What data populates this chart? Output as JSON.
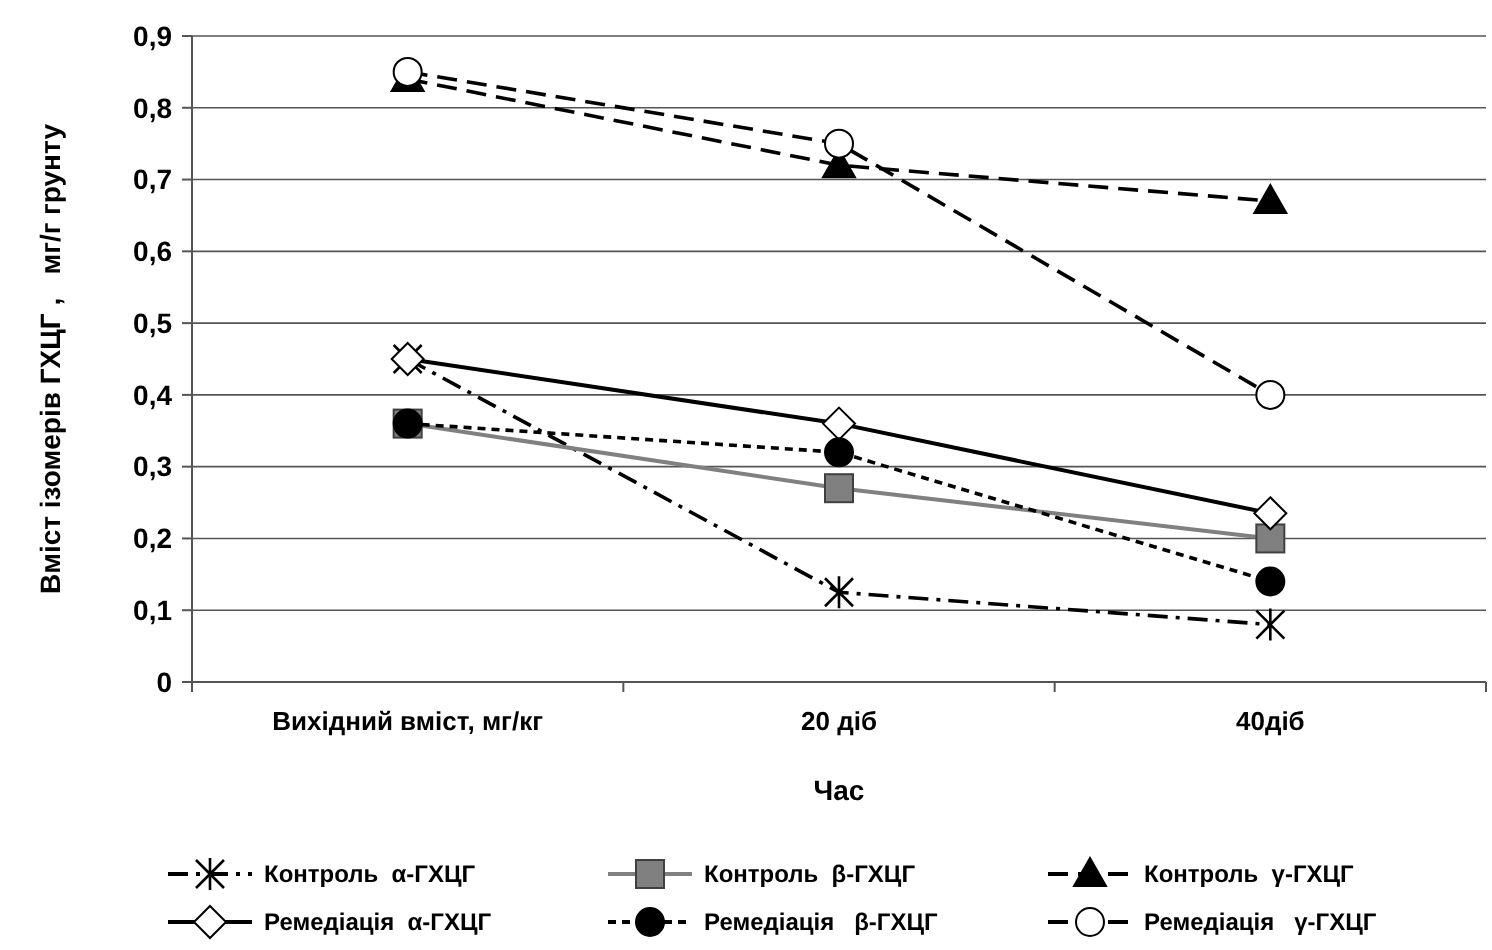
{
  "chart_data": {
    "type": "line",
    "xlabel": "Час",
    "ylabel": "Вміст ізомерів ГХЦГ ,   мг/г грунту",
    "categories": [
      "Вихідний вміст, мг/кг",
      "20 діб",
      "40діб"
    ],
    "ylim": [
      0,
      0.9
    ],
    "yticks": [
      {
        "value": 0,
        "label": "0"
      },
      {
        "value": 0.1,
        "label": "0,1"
      },
      {
        "value": 0.2,
        "label": "0,2"
      },
      {
        "value": 0.3,
        "label": "0,3"
      },
      {
        "value": 0.4,
        "label": "0,4"
      },
      {
        "value": 0.5,
        "label": "0,5"
      },
      {
        "value": 0.6,
        "label": "0,6"
      },
      {
        "value": 0.7,
        "label": "0,7"
      },
      {
        "value": 0.8,
        "label": "0,8"
      },
      {
        "value": 0.9,
        "label": "0,9"
      }
    ],
    "grid": "y",
    "legend": "bottom",
    "series": [
      {
        "name": "Контроль  α-ГХЦГ",
        "color": "#000000",
        "values": [
          0.45,
          0.125,
          0.08
        ],
        "marker": "cross",
        "line_style": "dashdot"
      },
      {
        "name": "Контроль  β-ГХЦГ",
        "color": "#808080",
        "values": [
          0.36,
          0.27,
          0.2
        ],
        "marker": "square",
        "line_style": "solid"
      },
      {
        "name": "Контроль  γ-ГХЦГ",
        "color": "#000000",
        "values": [
          0.84,
          0.72,
          0.67
        ],
        "marker": "triangle",
        "line_style": "dashed"
      },
      {
        "name": "Ремедіація  α-ГХЦГ",
        "color": "#000000",
        "colors": [
          "#ffffff",
          "#ffffff",
          "#ffffff"
        ],
        "values": [
          0.45,
          0.36,
          0.235
        ],
        "marker": "diamond",
        "line_style": "solid"
      },
      {
        "name": "Ремедіація   β-ГХЦГ",
        "color": "#000000",
        "values": [
          0.36,
          0.32,
          0.14
        ],
        "marker": "circle",
        "line_style": "dotted"
      },
      {
        "name": "Ремедіація   γ-ГХЦГ",
        "color": "#000000",
        "colors": [
          "#ffffff",
          "#ffffff",
          "#ffffff"
        ],
        "values": [
          0.85,
          0.75,
          0.4
        ],
        "marker": "circle",
        "line_style": "dashed"
      }
    ]
  }
}
